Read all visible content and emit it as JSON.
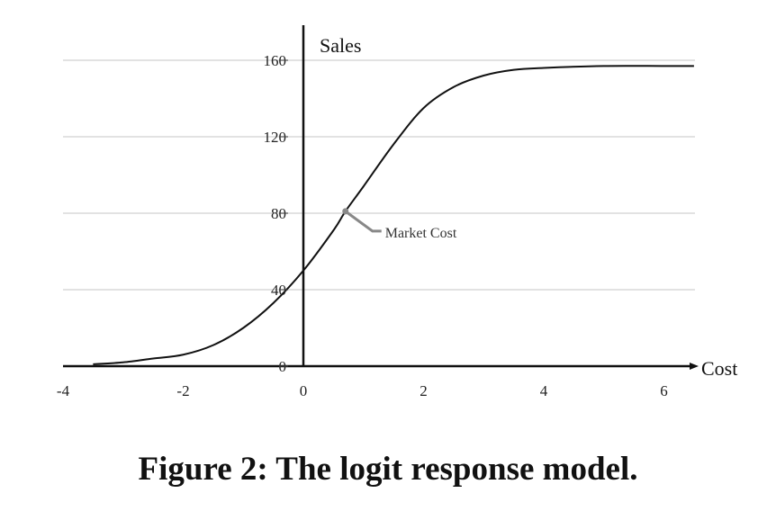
{
  "caption": "Figure 2: The logit response model.",
  "chart_data": {
    "type": "line",
    "xlabel": "Cost",
    "ylabel": "Sales",
    "xlim": [
      -4,
      6.5
    ],
    "ylim": [
      0,
      175
    ],
    "x_ticks": [
      "-4",
      "-2",
      "0",
      "2",
      "4",
      "6"
    ],
    "y_ticks": [
      "0",
      "40",
      "80",
      "120",
      "160"
    ],
    "grid": "horizontal",
    "series": [
      {
        "color": "#111111",
        "x": [
          -3.5,
          -3.0,
          -2.5,
          -2.0,
          -1.5,
          -1.0,
          -0.5,
          0.0,
          0.5,
          0.7,
          1.0,
          1.5,
          2.0,
          2.5,
          3.0,
          3.5,
          4.0,
          5.0,
          6.0,
          6.5
        ],
        "y": [
          1,
          2,
          4,
          6,
          11,
          20,
          33,
          50,
          71,
          81,
          94,
          116,
          135,
          146,
          152,
          155,
          156,
          157,
          157,
          157
        ]
      }
    ],
    "annotations": [
      {
        "label": "Market Cost",
        "x": 0.7,
        "y": 81,
        "color": "#888888"
      }
    ]
  }
}
